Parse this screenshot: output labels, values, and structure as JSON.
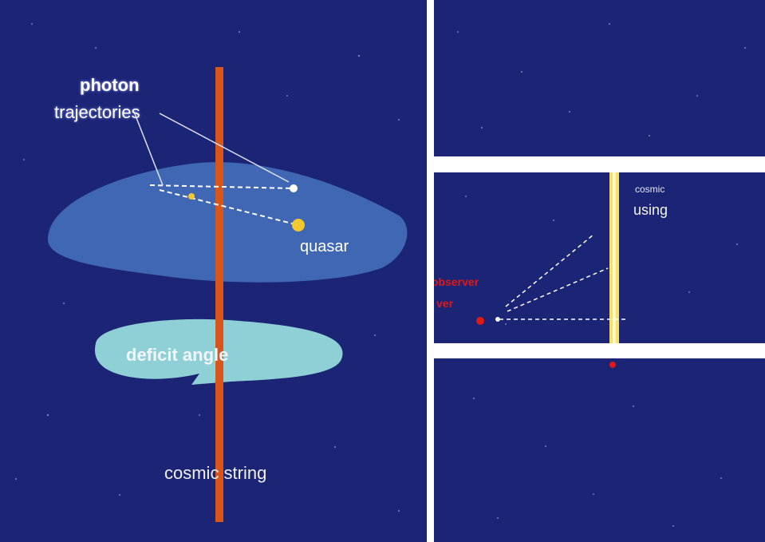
{
  "left": {
    "photon_label_line1": "photon",
    "photon_label_line2": "trajectories",
    "quasar_label": "quasar",
    "deficit_label": "deficit angle",
    "string_label": "cosmic string"
  },
  "right": {
    "lensing_line1": "cosmic",
    "lensing_line2": "using",
    "observer_line1": "observer",
    "observer_line2": "ver"
  },
  "colors": {
    "space": "#1b2475",
    "string_left": "#d9561a",
    "string_right": "#f4e06a",
    "plane": "#4e7dc8",
    "deficit": "#8fd0d6",
    "observer": "#e01818",
    "quasar": "#f2c830"
  }
}
